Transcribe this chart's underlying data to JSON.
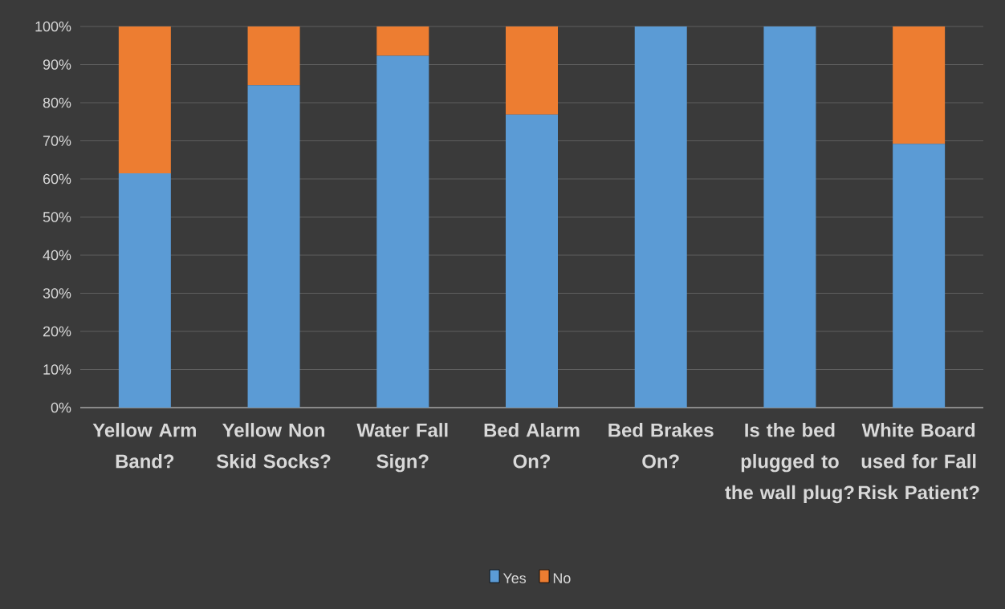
{
  "chart_data": {
    "type": "bar",
    "stacked": true,
    "categories": [
      "Yellow Arm Band?",
      "Yellow Non Skid Socks?",
      "Water Fall Sign?",
      "Bed Alarm On?",
      "Bed Brakes On?",
      "Is the bed plugged to the wall plug?",
      "White Board used for Fall Risk Patient?"
    ],
    "series": [
      {
        "name": "Yes",
        "color": "#5b9bd5",
        "values": [
          61.5,
          84.6,
          92.3,
          76.9,
          100,
          100,
          69.2
        ]
      },
      {
        "name": "No",
        "color": "#ed7d31",
        "values": [
          38.5,
          15.4,
          7.7,
          23.1,
          0,
          0,
          30.8
        ]
      }
    ],
    "ylim": [
      0,
      100
    ],
    "yticks": [
      {
        "value": 0,
        "label": "0%"
      },
      {
        "value": 10,
        "label": "10%"
      },
      {
        "value": 20,
        "label": "20%"
      },
      {
        "value": 30,
        "label": "30%"
      },
      {
        "value": 40,
        "label": "40%"
      },
      {
        "value": 50,
        "label": "50%"
      },
      {
        "value": 60,
        "label": "60%"
      },
      {
        "value": 70,
        "label": "70%"
      },
      {
        "value": 80,
        "label": "80%"
      },
      {
        "value": 90,
        "label": "90%"
      },
      {
        "value": 100,
        "label": "100%"
      }
    ],
    "grid": "y",
    "legend": "bottom"
  }
}
